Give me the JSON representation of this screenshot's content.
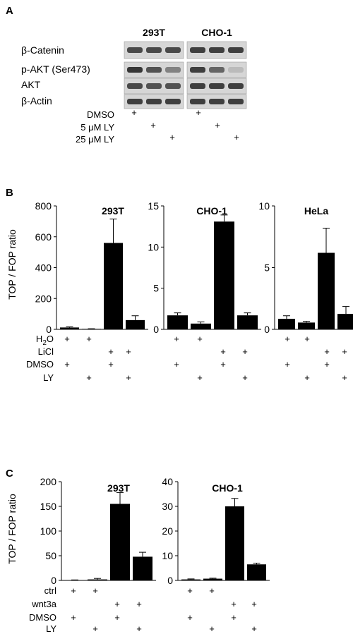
{
  "panel_a": {
    "letter": "A",
    "groups": [
      "293T",
      "CHO-1"
    ],
    "rows": [
      "β-Catenin",
      "p-AKT (Ser473)",
      "AKT",
      "β-Actin"
    ],
    "band_intensity": [
      [
        0.75,
        0.75,
        0.75,
        0.8,
        0.8,
        0.8
      ],
      [
        0.85,
        0.7,
        0.45,
        0.8,
        0.6,
        0.15
      ],
      [
        0.75,
        0.7,
        0.7,
        0.8,
        0.8,
        0.8
      ],
      [
        0.8,
        0.8,
        0.8,
        0.8,
        0.8,
        0.8
      ]
    ],
    "conditions": [
      {
        "label": "DMSO",
        "lanes": [
          0,
          3
        ]
      },
      {
        "label": "5 μM LY",
        "lanes": [
          1,
          4
        ]
      },
      {
        "label": "25 μM LY",
        "lanes": [
          2,
          5
        ]
      }
    ],
    "plus_sign": "+"
  },
  "panel_b": {
    "letter": "B",
    "ylabel": "TOP / FOP ratio",
    "rows": [
      {
        "label": "H",
        "sub": "2",
        "tail": "O",
        "marks": [
          1,
          1,
          0,
          0
        ]
      },
      {
        "label": "LiCl",
        "sub": "",
        "tail": "",
        "marks": [
          0,
          0,
          1,
          1
        ]
      },
      {
        "label": "DMSO",
        "sub": "",
        "tail": "",
        "marks": [
          1,
          0,
          1,
          0
        ]
      },
      {
        "label": "LY",
        "sub": "",
        "tail": "",
        "marks": [
          0,
          1,
          0,
          1
        ]
      }
    ]
  },
  "panel_c": {
    "letter": "C",
    "ylabel": "TOP / FOP ratio",
    "rows": [
      {
        "label": "ctrl",
        "sub": "",
        "tail": "",
        "marks": [
          1,
          1,
          0,
          0
        ]
      },
      {
        "label": "wnt3a",
        "sub": "",
        "tail": "",
        "marks": [
          0,
          0,
          1,
          1
        ]
      },
      {
        "label": "DMSO",
        "sub": "",
        "tail": "",
        "marks": [
          1,
          0,
          1,
          0
        ]
      },
      {
        "label": "LY",
        "sub": "",
        "tail": "",
        "marks": [
          0,
          1,
          0,
          1
        ]
      }
    ]
  },
  "chart_data": [
    {
      "type": "bar",
      "panel": "B",
      "title": "293T",
      "ylabel": "TOP / FOP ratio",
      "ylim": [
        0,
        800
      ],
      "yticks": [
        0,
        200,
        400,
        600,
        800
      ],
      "values": [
        12,
        3,
        560,
        60
      ],
      "errors": [
        4,
        1,
        155,
        28
      ]
    },
    {
      "type": "bar",
      "panel": "B",
      "title": "CHO-1",
      "ylabel": "",
      "ylim": [
        0,
        15
      ],
      "yticks": [
        0,
        5,
        10,
        15
      ],
      "values": [
        1.7,
        0.7,
        13.1,
        1.7
      ],
      "errors": [
        0.3,
        0.2,
        0.8,
        0.3
      ]
    },
    {
      "type": "bar",
      "panel": "B",
      "title": "HeLa",
      "ylabel": "",
      "ylim": [
        0,
        10
      ],
      "yticks": [
        0,
        5,
        10
      ],
      "values": [
        0.85,
        0.55,
        6.2,
        1.25
      ],
      "errors": [
        0.25,
        0.1,
        2.0,
        0.6
      ]
    },
    {
      "type": "bar",
      "panel": "C",
      "title": "293T",
      "ylabel": "TOP / FOP ratio",
      "ylim": [
        0,
        200
      ],
      "yticks": [
        0,
        50,
        100,
        150,
        200
      ],
      "values": [
        0.5,
        2,
        155,
        48
      ],
      "errors": [
        0.5,
        2,
        23,
        9
      ]
    },
    {
      "type": "bar",
      "panel": "C",
      "title": "CHO-1",
      "ylabel": "",
      "ylim": [
        0,
        40
      ],
      "yticks": [
        0,
        10,
        20,
        30,
        40
      ],
      "values": [
        0.4,
        0.7,
        30,
        6.5
      ],
      "errors": [
        0.2,
        0.2,
        3.2,
        0.5
      ]
    }
  ]
}
